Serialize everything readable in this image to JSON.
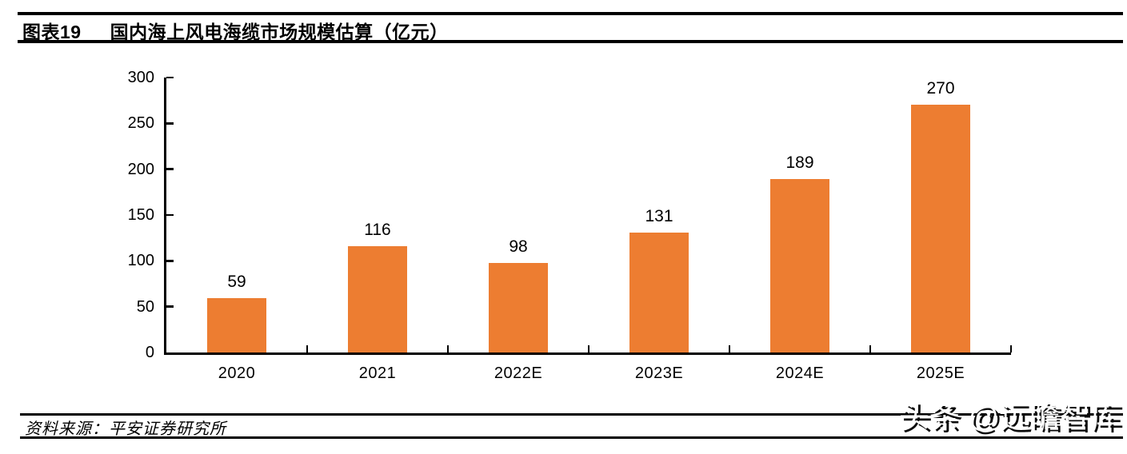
{
  "header": {
    "figure_label": "图表19",
    "title": "国内海上风电海缆市场规模估算（亿元）"
  },
  "chart_data": {
    "type": "bar",
    "title": "国内海上风电海缆市场规模估算（亿元）",
    "categories": [
      "2020",
      "2021",
      "2022E",
      "2023E",
      "2024E",
      "2025E"
    ],
    "values": [
      59,
      116,
      98,
      131,
      189,
      270
    ],
    "xlabel": "",
    "ylabel": "",
    "unit": "亿元",
    "ylim": [
      0,
      300
    ],
    "yticks": [
      0,
      50,
      100,
      150,
      200,
      250,
      300
    ],
    "grid": false,
    "legend": "none",
    "value_labels": true,
    "bar_color": "#ED7D31"
  },
  "footer": {
    "source": "资料来源：平安证券研究所"
  },
  "watermark": {
    "text": "头条 @远瞻智库"
  },
  "colors": {
    "bar": "#ED7D31",
    "axis": "#000000",
    "text": "#000000",
    "background": "#FFFFFF",
    "watermark_fill": "#FFFFFF",
    "watermark_shadow": "#000000"
  }
}
